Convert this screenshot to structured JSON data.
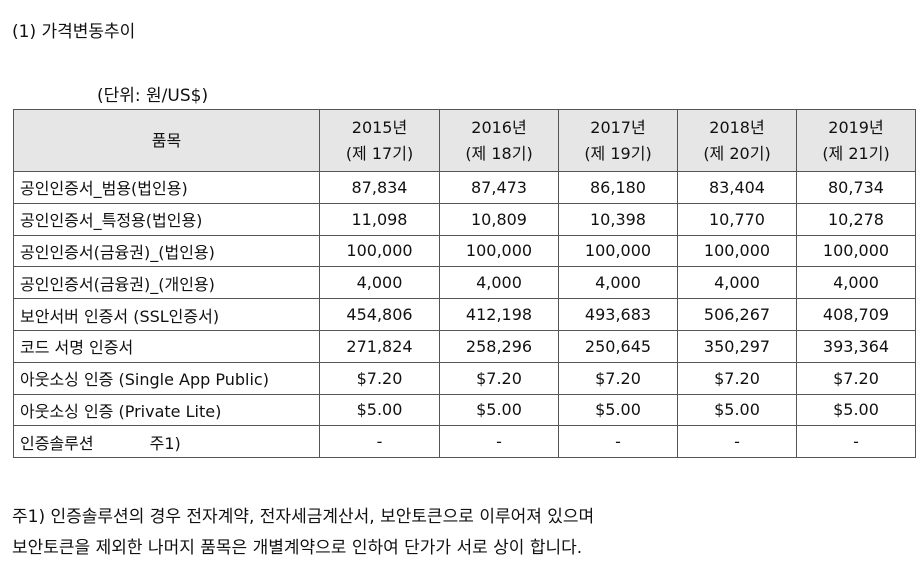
{
  "section_title": "(1) 가격변동추이",
  "unit_label": "(단위: 원/US$)",
  "table": {
    "item_header": "품목",
    "year_headers": [
      {
        "year": "2015년",
        "term": "(제 17기)"
      },
      {
        "year": "2016년",
        "term": "(제 18기)"
      },
      {
        "year": "2017년",
        "term": "(제 19기)"
      },
      {
        "year": "2018년",
        "term": "(제 20기)"
      },
      {
        "year": "2019년",
        "term": "(제 21기)"
      }
    ],
    "rows": [
      {
        "item": "공인인증서_범용(법인용)",
        "note": "",
        "values": [
          "87,834",
          "87,473",
          "86,180",
          "83,404",
          "80,734"
        ]
      },
      {
        "item": "공인인증서_특정용(법인용)",
        "note": "",
        "values": [
          "11,098",
          "10,809",
          "10,398",
          "10,770",
          "10,278"
        ]
      },
      {
        "item": "공인인증서(금융권)_(법인용)",
        "note": "",
        "values": [
          "100,000",
          "100,000",
          "100,000",
          "100,000",
          "100,000"
        ]
      },
      {
        "item": "공인인증서(금융권)_(개인용)",
        "note": "",
        "values": [
          "4,000",
          "4,000",
          "4,000",
          "4,000",
          "4,000"
        ]
      },
      {
        "item": "보안서버 인증서 (SSL인증서)",
        "note": "",
        "values": [
          "454,806",
          "412,198",
          "493,683",
          "506,267",
          "408,709"
        ]
      },
      {
        "item": "코드 서명 인증서",
        "note": "",
        "values": [
          "271,824",
          "258,296",
          "250,645",
          "350,297",
          "393,364"
        ]
      },
      {
        "item": "아웃소싱 인증 (Single App Public)",
        "note": "",
        "values": [
          "$7.20",
          "$7.20",
          "$7.20",
          "$7.20",
          "$7.20"
        ]
      },
      {
        "item": "아웃소싱 인증 (Private Lite)",
        "note": "",
        "values": [
          "$5.00",
          "$5.00",
          "$5.00",
          "$5.00",
          "$5.00"
        ]
      },
      {
        "item": "인증솔루션",
        "note": "주1)",
        "values": [
          "-",
          "-",
          "-",
          "-",
          "-"
        ]
      }
    ]
  },
  "footnote": {
    "line1": "주1) 인증솔루션의 경우 전자계약, 전자세금계산서, 보안토큰으로 이루어져 있으며",
    "line2": "보안토큰을 제외한 나머지 품목은 개별계약으로 인하여 단가가 서로 상이 합니다."
  }
}
